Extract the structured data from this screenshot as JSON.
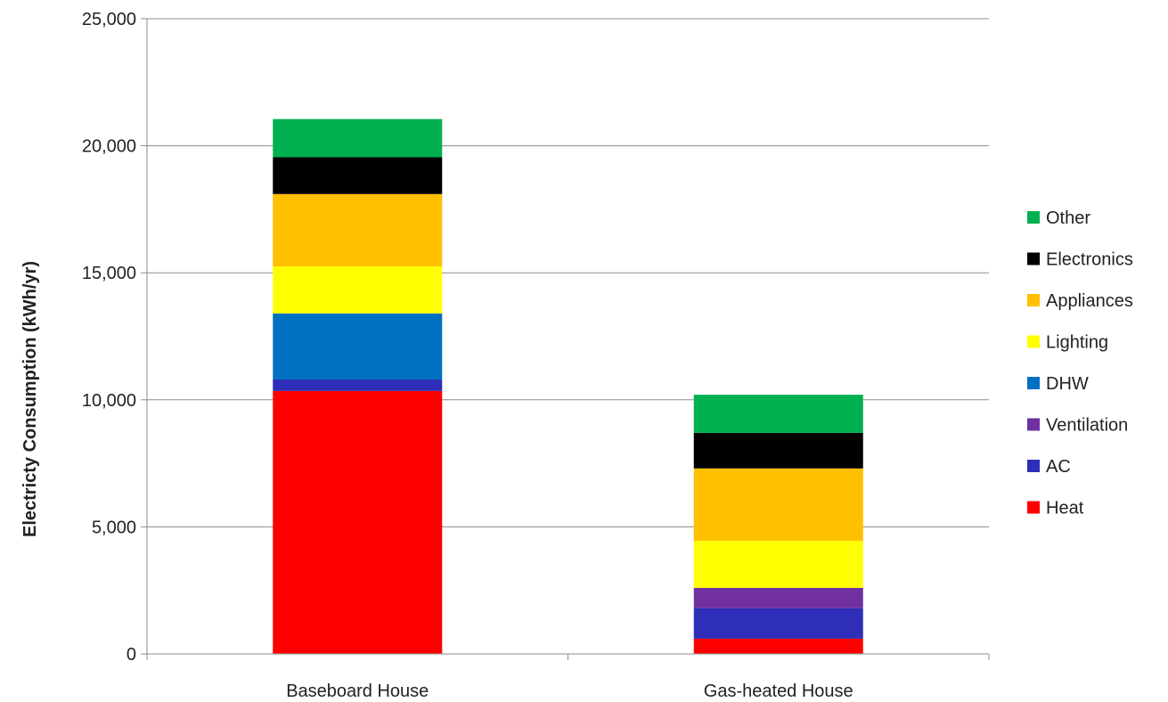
{
  "chart_data": {
    "type": "bar",
    "stacked": true,
    "categories": [
      "Baseboard House",
      "Gas-heated House"
    ],
    "ylabel": "Electricty Consumption (kWh/yr)",
    "xlabel": "",
    "ylim": [
      0,
      25000
    ],
    "yticks": [
      0,
      5000,
      10000,
      15000,
      20000,
      25000
    ],
    "ytick_labels": [
      "0",
      "5,000",
      "10,000",
      "15,000",
      "20,000",
      "25,000"
    ],
    "grid": true,
    "legend_position": "right",
    "series": [
      {
        "name": "Heat",
        "color": "#ff0000",
        "values": [
          10350,
          600
        ]
      },
      {
        "name": "AC",
        "color": "#2e2eb8",
        "values": [
          450,
          1200
        ]
      },
      {
        "name": "Ventilation",
        "color": "#7030a0",
        "values": [
          0,
          800
        ]
      },
      {
        "name": "DHW",
        "color": "#0070c0",
        "values": [
          2600,
          0
        ]
      },
      {
        "name": "Lighting",
        "color": "#ffff00",
        "values": [
          1850,
          1850
        ]
      },
      {
        "name": "Appliances",
        "color": "#ffc000",
        "values": [
          2850,
          2850
        ]
      },
      {
        "name": "Electronics",
        "color": "#000000",
        "values": [
          1450,
          1400
        ]
      },
      {
        "name": "Other",
        "color": "#00b050",
        "values": [
          1500,
          1500
        ]
      }
    ]
  }
}
